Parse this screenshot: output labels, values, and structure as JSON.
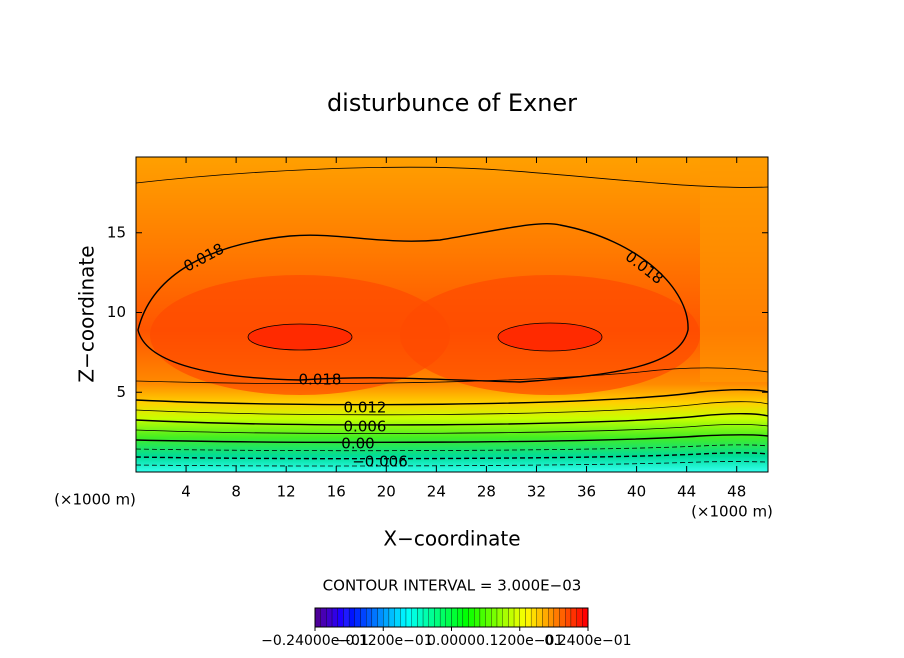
{
  "chart_data": {
    "type": "contour",
    "title": "disturbunce of Exner",
    "xlabel": "X−coordinate",
    "ylabel": "Z−coordinate",
    "x_units": "(×1000 m)",
    "xlim": [
      0,
      50.5
    ],
    "ylim": [
      0,
      19.75
    ],
    "xticks": [
      4,
      8,
      12,
      16,
      20,
      24,
      28,
      32,
      36,
      40,
      44,
      48
    ],
    "yticks": [
      5,
      10,
      15
    ],
    "contour_interval": "CONTOUR INTERVAL = 3.000E−03",
    "contour_labels": {
      "values": [
        0.018,
        0.018,
        0.018,
        0.012,
        0.006,
        0,
        -0.006
      ],
      "value_labels": [
        "0.018",
        "0.018",
        "0.018",
        "0.012",
        "0.006",
        "0.00",
        "−0.006"
      ]
    },
    "colorbar": {
      "range": [
        -0.024,
        0.024
      ],
      "ticks": [
        {
          "value": -0.024,
          "label": "−0.24000e−01"
        },
        {
          "value": -0.012,
          "label": "−0.1200e−01"
        },
        {
          "value": 0,
          "label": "0.0000"
        },
        {
          "value": 0.012,
          "label": "0.1200e−01"
        },
        {
          "value": 0.024,
          "label": "0.2400e−01"
        }
      ]
    }
  }
}
